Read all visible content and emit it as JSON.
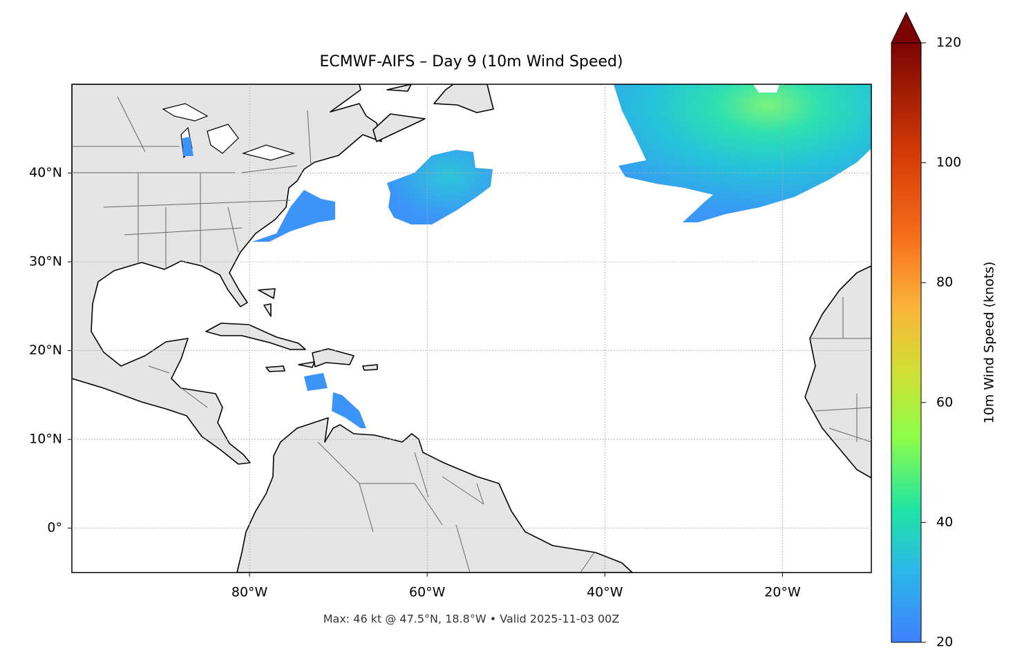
{
  "map": {
    "title": "ECMWF-AIFS – Day 9 (10m Wind Speed)",
    "footer": "Max: 46 kt @ 47.5°N, 18.8°W • Valid 2025-11-03 00Z",
    "xlim": [
      -100,
      -10
    ],
    "ylim": [
      -5,
      50
    ],
    "xticks": [
      {
        "value": -80,
        "label": "80°W"
      },
      {
        "value": -60,
        "label": "60°W"
      },
      {
        "value": -40,
        "label": "40°W"
      },
      {
        "value": -20,
        "label": "20°W"
      }
    ],
    "yticks": [
      {
        "value": 0,
        "label": "0°"
      },
      {
        "value": 10,
        "label": "10°N"
      },
      {
        "value": 20,
        "label": "20°N"
      },
      {
        "value": 30,
        "label": "30°N"
      },
      {
        "value": 40,
        "label": "40°N"
      }
    ],
    "grid": true,
    "colorbar": {
      "label": "10m Wind Speed (knots)",
      "lim": [
        20,
        120
      ],
      "ticks": [
        20,
        40,
        60,
        80,
        100,
        120
      ]
    }
  }
}
